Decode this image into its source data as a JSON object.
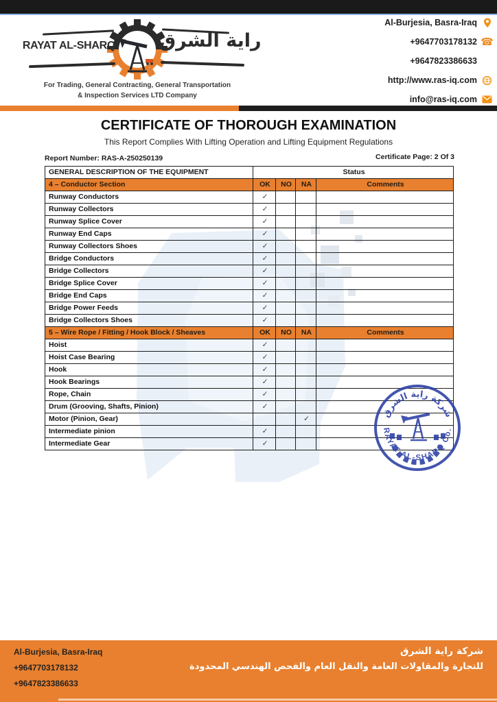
{
  "header": {
    "company_name_en": "RAYAT AL-SHARQ",
    "company_name_ar": "راية الشرق",
    "tagline_line1": "For Trading, General Contracting, General Transportation",
    "tagline_line2": "& Inspection Services LTD Company",
    "contacts": [
      {
        "text": "Al-Burjesia, Basra-Iraq",
        "icon": "location-pin-icon"
      },
      {
        "text": "+9647703178132",
        "icon": "phone-icon"
      },
      {
        "text": "+9647823386633",
        "icon": "none"
      },
      {
        "text": "http://www.ras-iq.com",
        "icon": "globe-icon"
      },
      {
        "text": "info@ras-iq.com",
        "icon": "envelope-icon"
      }
    ]
  },
  "certificate": {
    "title": "CERTIFICATE OF THOROUGH EXAMINATION",
    "subtitle": "This Report Complies With Lifting Operation and Lifting Equipment Regulations",
    "report_number": "Report Number: RAS-A-250250139",
    "certificate_page": "Certificate Page: 2 Of 3"
  },
  "table": {
    "description_header": "GENERAL DESCRIPTION OF THE EQUIPMENT",
    "status_header": "Status",
    "status_columns": [
      "OK",
      "NO",
      "NA",
      "Comments"
    ],
    "check_glyph": "✓",
    "sections": [
      {
        "title": "4 – Conductor Section",
        "rows": [
          {
            "label": "Runway Conductors",
            "status": "OK",
            "comment": ""
          },
          {
            "label": "Runway Collectors",
            "status": "OK",
            "comment": ""
          },
          {
            "label": "Runway Splice Cover",
            "status": "OK",
            "comment": ""
          },
          {
            "label": "Runway End Caps",
            "status": "OK",
            "comment": ""
          },
          {
            "label": "Runway Collectors Shoes",
            "status": "OK",
            "comment": ""
          },
          {
            "label": "Bridge Conductors",
            "status": "OK",
            "comment": ""
          },
          {
            "label": "Bridge Collectors",
            "status": "OK",
            "comment": ""
          },
          {
            "label": "Bridge Splice Cover",
            "status": "OK",
            "comment": ""
          },
          {
            "label": "Bridge End Caps",
            "status": "OK",
            "comment": ""
          },
          {
            "label": "Bridge Power Feeds",
            "status": "OK",
            "comment": ""
          },
          {
            "label": "Bridge Collectors Shoes",
            "status": "OK",
            "comment": ""
          }
        ]
      },
      {
        "title": "5 – Wire Rope / Fitting / Hook Block / Sheaves",
        "rows": [
          {
            "label": "Hoist",
            "status": "OK",
            "comment": ""
          },
          {
            "label": "Hoist Case Bearing",
            "status": "OK",
            "comment": ""
          },
          {
            "label": "Hook",
            "status": "OK",
            "comment": ""
          },
          {
            "label": "Hook Bearings",
            "status": "OK",
            "comment": ""
          },
          {
            "label": "Rope, Chain",
            "status": "OK",
            "comment": ""
          },
          {
            "label": "Drum (Grooving, Shafts, Pinion)",
            "status": "OK",
            "comment": ""
          },
          {
            "label": "Motor (Pinion, Gear)",
            "status": "NA",
            "comment": ""
          },
          {
            "label": "Intermediate pinion",
            "status": "OK",
            "comment": ""
          },
          {
            "label": "Intermediate Gear",
            "status": "OK",
            "comment": ""
          }
        ]
      }
    ]
  },
  "stamp": {
    "arabic_text": "شركة راية الشرق",
    "latin_text": "RAYAT AL-SHARQ Co."
  },
  "footer": {
    "address": "Al-Burjesia, Basra-Iraq",
    "phone1": "+9647703178132",
    "phone2": "+9647823386633",
    "company_ar_line1": "شركة راية الشرق",
    "company_ar_line2": "للتجارة والمقاولات العامة والنقل العام والفحص الهندسي المحدودة"
  },
  "colors": {
    "accent_orange": "#e8802f",
    "stamp_blue": "#2b3ea4",
    "topbar_black": "#1a1a1a",
    "topbar_blue_line": "#8fb4e0",
    "watermark_blue": "#e8eff7"
  }
}
